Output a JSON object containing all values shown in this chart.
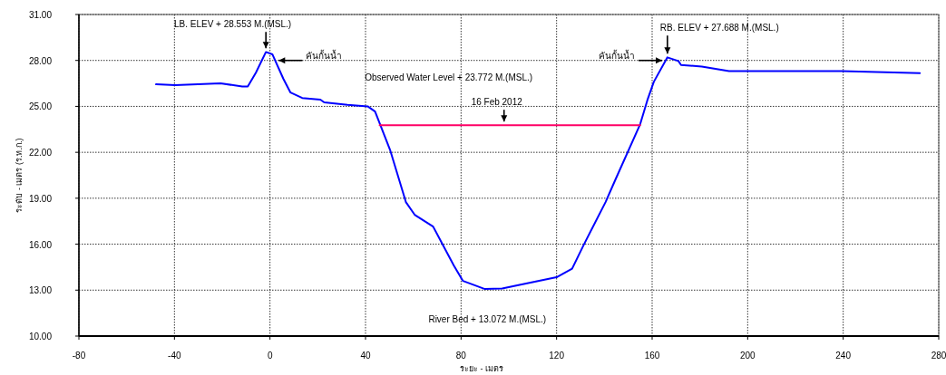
{
  "chart_data": {
    "type": "line",
    "xlabel": "ระยะ - เมตร",
    "ylabel": "ระดับ - เมตร (ร.ท.ก.)",
    "series": [
      {
        "color": "#0000ff",
        "x": [
          -47.7,
          -39.7,
          -20.7,
          -11.6,
          -9.3,
          -5.9,
          -1.7,
          1.0,
          5.6,
          8.6,
          13.5,
          21.1,
          22.7,
          32.5,
          40.9,
          44.0,
          50.4,
          56.9,
          60.7,
          68.3,
          77.0,
          80.8,
          90,
          97.2,
          120,
          126.5,
          131.4,
          140.5,
          144.3,
          155,
          158,
          160.7,
          166.4,
          171,
          172.1,
          180.8,
          192.2,
          239.4,
          272.1
        ],
        "values": [
          26.44,
          26.38,
          26.5,
          26.3,
          26.3,
          27.2,
          28.55,
          28.4,
          26.8,
          25.9,
          25.55,
          25.44,
          25.26,
          25.1,
          25.0,
          24.66,
          22.1,
          18.75,
          17.9,
          17.15,
          14.6,
          13.6,
          13.07,
          13.1,
          13.84,
          14.4,
          15.97,
          18.75,
          20.1,
          23.84,
          25.4,
          26.6,
          28.2,
          27.96,
          27.7,
          27.6,
          27.3,
          27.3,
          27.17
        ]
      },
      {
        "color": "#ff0066",
        "x": [
          45.9,
          155
        ],
        "values": [
          23.77,
          23.77
        ]
      }
    ],
    "xlim": [
      -80,
      280
    ],
    "xticks": [
      -80,
      -40,
      0,
      40,
      80,
      120,
      160,
      200,
      240,
      280
    ],
    "ylim": [
      10,
      31
    ],
    "yticks": [
      {
        "value": 10,
        "label": "10.00"
      },
      {
        "value": 13,
        "label": "13.00"
      },
      {
        "value": 16,
        "label": "16.00"
      },
      {
        "value": 19,
        "label": "19.00"
      },
      {
        "value": 22,
        "label": "22.00"
      },
      {
        "value": 25,
        "label": "25.00"
      },
      {
        "value": 28,
        "label": "28.00"
      },
      {
        "value": 31,
        "label": "31.00"
      }
    ],
    "grid": true,
    "marker": "none",
    "line_style": "solid",
    "annotations": [
      {
        "text": "LB. ELEV + 28.553 M.(MSL.)",
        "x": -1.7,
        "y": 28.553
      },
      {
        "text": "คันกั้นน้ำ",
        "x": 2.15,
        "y": 28.0
      },
      "Observed Water Level + 23.772 M.(MSL.)",
      {
        "text": "16 Feb 2012",
        "x": 98,
        "y": 23.772
      },
      {
        "text": "คันกั้นน้ำ",
        "x": 165.7,
        "y": 28.0
      },
      {
        "text": "RB. ELEV + 27.688 M.(MSL.)",
        "x": 166.4,
        "y": 28.2
      },
      {
        "text": "River Bed + 13.072 M.(MSL.)",
        "x": 91,
        "y": 13.072
      }
    ]
  }
}
